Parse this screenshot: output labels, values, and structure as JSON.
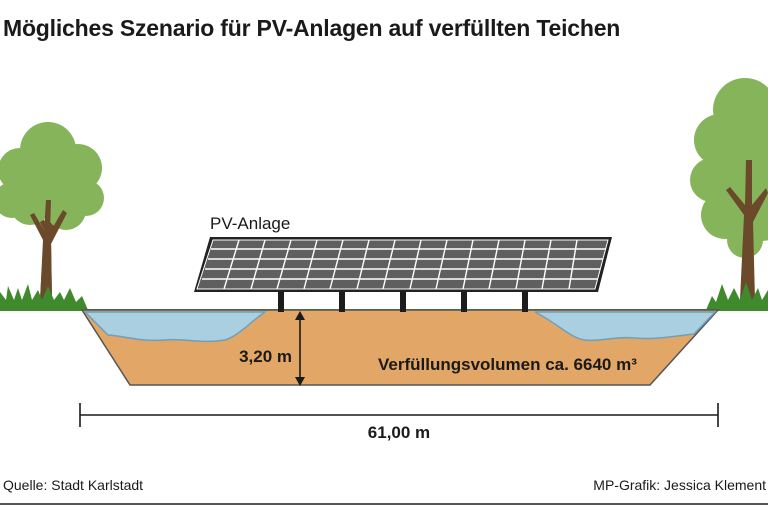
{
  "title": "Mögliches Szenario für PV-Anlagen auf verfüllten Teichen",
  "labels": {
    "pv": "PV-Anlage",
    "depth": "3,20 m",
    "volume": "Verfüllungsvolumen ca. 6640 m³",
    "width": "61,00 m"
  },
  "footer": {
    "source": "Quelle: Stadt Karlstadt",
    "credit": "MP-Grafik: Jessica Klement"
  },
  "colors": {
    "fill_soil": "#e2a766",
    "water": "#a9cfe0",
    "water_edge": "#6f9fba",
    "grass": "#3f8a2c",
    "tree_foliage": "#86b45a",
    "tree_trunk": "#6b4a2c",
    "panel_cell": "#5f5f5f",
    "panel_grid": "#ffffff",
    "post": "#1c1c1c"
  }
}
